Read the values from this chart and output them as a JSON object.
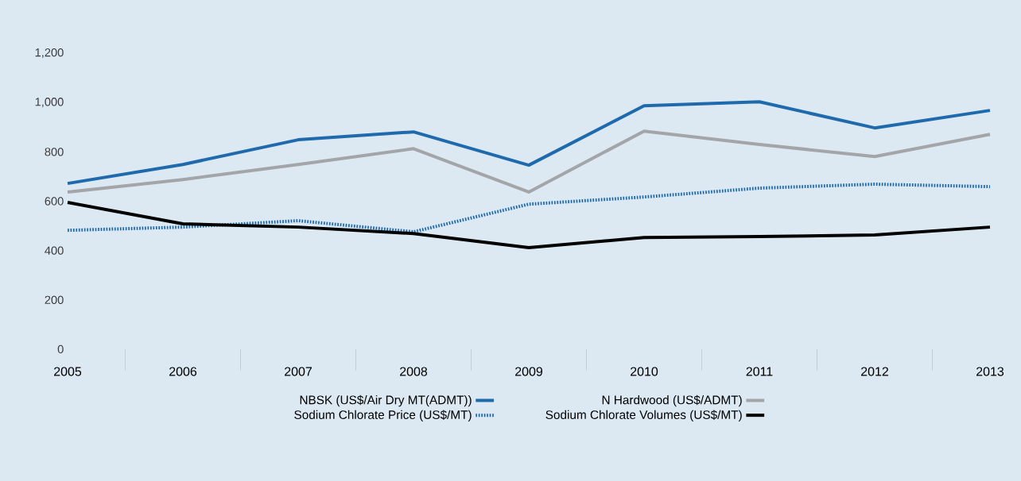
{
  "chart_data": {
    "type": "line",
    "categories": [
      "2005",
      "2006",
      "2007",
      "2008",
      "2009",
      "2010",
      "2011",
      "2012",
      "2013"
    ],
    "series": [
      {
        "name": "NBSK (US$/Air Dry MT(ADMT))",
        "color": "#1f6aad",
        "line_style": "solid",
        "values": [
          672,
          749,
          849,
          881,
          746,
          987,
          1003,
          897,
          968
        ]
      },
      {
        "name": "N Hardwood (US$/ADMT)",
        "color": "#a3a5a8",
        "line_style": "solid",
        "values": [
          637,
          688,
          749,
          813,
          637,
          884,
          830,
          781,
          871
        ]
      },
      {
        "name": "Sodium Chlorate Price (US$/MT)",
        "color": "#1f6aad",
        "line_style": "dotted",
        "values": [
          482,
          495,
          521,
          476,
          588,
          617,
          653,
          669,
          659
        ]
      },
      {
        "name": "Sodium Chlorate Volumes (US$/MT)",
        "color": "#000000",
        "line_style": "solid",
        "values": [
          595,
          508,
          495,
          469,
          412,
          453,
          457,
          463,
          495
        ]
      }
    ],
    "ylim": [
      0,
      1200
    ],
    "yticks": [
      0,
      200,
      400,
      600,
      800,
      {
        "value": 1000,
        "label": "1,000"
      },
      {
        "value": 1200,
        "label": "1,200"
      }
    ],
    "grid": false,
    "legend": "bottom",
    "marker": "none"
  }
}
